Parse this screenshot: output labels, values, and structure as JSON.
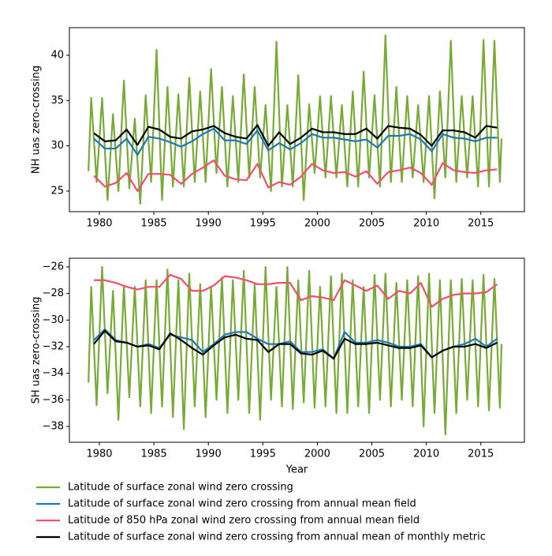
{
  "chart_data": [
    {
      "type": "line",
      "ylabel": "NH uas zero-crossing",
      "xlim": [
        1977.25,
        2019
      ],
      "xticks": [
        1980,
        1985,
        1990,
        1995,
        2000,
        2005,
        2010,
        2015
      ],
      "ylim": [
        22.73,
        43.05
      ],
      "yticks": [
        25,
        30,
        35,
        40
      ],
      "series": [
        {
          "name": "Latitude of surface zonal wind zero crossing",
          "color": "#77ab36",
          "x": [
            1979,
            1979.25,
            1979.75,
            1980.25,
            1980.75,
            1981.25,
            1981.75,
            1982.25,
            1982.75,
            1983.25,
            1983.75,
            1984.25,
            1984.75,
            1985.25,
            1985.75,
            1986.25,
            1986.75,
            1987.25,
            1987.75,
            1988.25,
            1988.75,
            1989.25,
            1989.75,
            1990.25,
            1990.75,
            1991.25,
            1991.75,
            1992.25,
            1992.75,
            1993.25,
            1993.75,
            1994.25,
            1994.75,
            1995.25,
            1995.75,
            1996.25,
            1996.75,
            1997.25,
            1997.75,
            1998.25,
            1998.75,
            1999.25,
            1999.75,
            2000.25,
            2000.75,
            2001.25,
            2001.75,
            2002.25,
            2002.75,
            2003.25,
            2003.75,
            2004.25,
            2004.75,
            2005.25,
            2005.75,
            2006.25,
            2006.75,
            2007.25,
            2007.75,
            2008.25,
            2008.75,
            2009.25,
            2009.75,
            2010.25,
            2010.75,
            2011.25,
            2011.75,
            2012.25,
            2012.75,
            2013.25,
            2013.75,
            2014.25,
            2014.75,
            2015.25,
            2015.75,
            2016.25,
            2016.75,
            2016.9
          ],
          "values": [
            27.2,
            35.3,
            26.0,
            35.3,
            24.0,
            33.5,
            25.0,
            37.2,
            25.3,
            33.0,
            23.6,
            35.6,
            26.0,
            40.6,
            24.0,
            36.5,
            25.5,
            35.7,
            25.5,
            37.5,
            26.0,
            36.0,
            26.0,
            38.5,
            27.0,
            36.5,
            25.5,
            35.5,
            26.0,
            37.9,
            26.5,
            36.5,
            26.5,
            34.5,
            25.0,
            41.5,
            25.5,
            34.5,
            25.5,
            37.8,
            24.0,
            34.6,
            27.0,
            35.5,
            26.5,
            35.5,
            26.5,
            34.5,
            25.5,
            36.0,
            25.5,
            38.2,
            26.5,
            35.6,
            25.5,
            42.2,
            26.0,
            36.5,
            26.0,
            35.5,
            26.5,
            34.5,
            26.0,
            35.5,
            24.2,
            36.0,
            26.5,
            41.6,
            26.0,
            35.5,
            26.5,
            35.5,
            25.5,
            41.7,
            25.5,
            41.6,
            26.0,
            30.8
          ]
        },
        {
          "name": "Latitude of surface zonal wind zero crossing from annual mean field",
          "color": "#1f77b4",
          "x": [
            1979.5,
            1980.5,
            1981.5,
            1982.5,
            1983.5,
            1984.5,
            1985.5,
            1986.5,
            1987.5,
            1988.5,
            1989.5,
            1990.5,
            1991.5,
            1992.5,
            1993.5,
            1994.5,
            1995.5,
            1996.5,
            1997.5,
            1998.5,
            1999.5,
            2000.5,
            2001.5,
            2002.5,
            2003.5,
            2004.5,
            2005.5,
            2006.5,
            2007.5,
            2008.5,
            2009.5,
            2010.5,
            2011.5,
            2012.5,
            2013.5,
            2014.5,
            2015.5,
            2016.5
          ],
          "values": [
            30.8,
            29.7,
            29.7,
            30.8,
            29.0,
            31.0,
            30.8,
            30.4,
            29.9,
            30.5,
            31.3,
            31.9,
            30.6,
            30.6,
            30.2,
            31.7,
            29.5,
            30.3,
            29.6,
            30.3,
            31.3,
            30.9,
            30.9,
            30.7,
            30.5,
            30.7,
            29.8,
            31.1,
            31.1,
            31.3,
            30.7,
            29.4,
            31.3,
            30.9,
            30.8,
            30.5,
            30.9,
            30.9
          ]
        },
        {
          "name": "Latitude of 850 hPa zonal wind zero crossing from annual mean field",
          "color": "#f0506a",
          "x": [
            1979.5,
            1980.5,
            1981.5,
            1982.5,
            1983.5,
            1984.5,
            1985.5,
            1986.5,
            1987.5,
            1988.5,
            1989.5,
            1990.5,
            1991.5,
            1992.5,
            1993.5,
            1994.5,
            1995.5,
            1996.5,
            1997.5,
            1998.5,
            1999.5,
            2000.5,
            2001.5,
            2002.5,
            2003.5,
            2004.5,
            2005.5,
            2006.5,
            2007.5,
            2008.5,
            2009.5,
            2010.5,
            2011.5,
            2012.5,
            2013.5,
            2014.5,
            2015.5,
            2016.5
          ],
          "values": [
            26.7,
            25.5,
            25.9,
            27.0,
            25.0,
            26.9,
            26.9,
            26.8,
            25.8,
            26.9,
            27.6,
            28.4,
            26.7,
            26.3,
            26.2,
            28.0,
            25.4,
            26.0,
            25.7,
            26.6,
            28.0,
            27.3,
            27.0,
            27.1,
            26.6,
            27.2,
            25.8,
            27.1,
            27.3,
            27.6,
            27.0,
            25.7,
            28.1,
            27.3,
            27.1,
            27.0,
            27.3,
            27.4
          ]
        },
        {
          "name": "Latitude of surface zonal wind zero crossing from annual mean of monthly metric",
          "color": "#000000",
          "x": [
            1979.5,
            1980.5,
            1981.5,
            1982.5,
            1983.5,
            1984.5,
            1985.5,
            1986.5,
            1987.5,
            1988.5,
            1989.5,
            1990.5,
            1991.5,
            1992.5,
            1993.5,
            1994.5,
            1995.5,
            1996.5,
            1997.5,
            1998.5,
            1999.5,
            2000.5,
            2001.5,
            2002.5,
            2003.5,
            2004.5,
            2005.5,
            2006.5,
            2007.5,
            2008.5,
            2009.5,
            2010.5,
            2011.5,
            2012.5,
            2013.5,
            2014.5,
            2015.5,
            2016.5
          ],
          "values": [
            31.4,
            30.5,
            30.6,
            31.8,
            30.1,
            32.1,
            31.8,
            31.0,
            30.8,
            31.6,
            31.8,
            32.2,
            31.4,
            31.0,
            30.8,
            32.3,
            30.0,
            31.5,
            30.2,
            30.9,
            31.9,
            31.5,
            31.5,
            31.3,
            31.3,
            31.9,
            30.8,
            32.2,
            32.0,
            31.9,
            31.2,
            30.0,
            31.7,
            31.7,
            31.5,
            30.9,
            32.2,
            32.0
          ]
        }
      ]
    },
    {
      "type": "line",
      "ylabel": "SH uas zero-crossing",
      "xlabel": "Year",
      "xlim": [
        1977.25,
        2019
      ],
      "xticks": [
        1980,
        1985,
        1990,
        1995,
        2000,
        2005,
        2010,
        2015
      ],
      "ylim": [
        -39.19,
        -25.35
      ],
      "yticks": [
        {
          "value": -38,
          "label": "−38"
        },
        {
          "value": -36,
          "label": "−36"
        },
        {
          "value": -34,
          "label": "−34"
        },
        {
          "value": -32,
          "label": "−32"
        },
        {
          "value": -30,
          "label": "−30"
        },
        {
          "value": -28,
          "label": "−28"
        },
        {
          "value": -26,
          "label": "−26"
        }
      ],
      "series": [
        {
          "color": "#77ab36",
          "x": [
            1979,
            1979.25,
            1979.75,
            1980.25,
            1980.75,
            1981.25,
            1981.75,
            1982.25,
            1982.75,
            1983.25,
            1983.75,
            1984.25,
            1984.75,
            1985.25,
            1985.75,
            1986.25,
            1986.75,
            1987.25,
            1987.75,
            1988.25,
            1988.75,
            1989.25,
            1989.75,
            1990.25,
            1990.75,
            1991.25,
            1991.75,
            1992.25,
            1992.75,
            1993.25,
            1993.75,
            1994.25,
            1994.75,
            1995.25,
            1995.75,
            1996.25,
            1996.75,
            1997.25,
            1997.75,
            1998.25,
            1998.75,
            1999.25,
            1999.75,
            2000.25,
            2000.75,
            2001.25,
            2001.75,
            2002.25,
            2002.75,
            2003.25,
            2003.75,
            2004.25,
            2004.75,
            2005.25,
            2005.75,
            2006.25,
            2006.75,
            2007.25,
            2007.75,
            2008.25,
            2008.75,
            2009.25,
            2009.75,
            2010.25,
            2010.75,
            2011.25,
            2011.75,
            2012.25,
            2012.75,
            2013.25,
            2013.75,
            2014.25,
            2014.75,
            2015.25,
            2015.75,
            2016.25,
            2016.75,
            2016.9
          ],
          "values": [
            -34.7,
            -27.5,
            -36.4,
            -26.0,
            -35.5,
            -27.8,
            -37.5,
            -27.4,
            -35.8,
            -27.5,
            -36.5,
            -27.0,
            -37.0,
            -27.0,
            -36.5,
            -26.2,
            -37.3,
            -27.0,
            -38.2,
            -26.5,
            -36.5,
            -27.3,
            -37.3,
            -27.5,
            -36.0,
            -26.8,
            -37.0,
            -27.0,
            -36.0,
            -26.3,
            -37.0,
            -27.3,
            -37.5,
            -26.0,
            -36.0,
            -27.5,
            -36.5,
            -26.0,
            -36.7,
            -27.0,
            -36.2,
            -26.3,
            -36.6,
            -27.5,
            -36.5,
            -26.7,
            -37.0,
            -26.5,
            -37.0,
            -27.0,
            -36.5,
            -27.5,
            -37.0,
            -26.6,
            -36.0,
            -26.5,
            -36.5,
            -27.2,
            -36.0,
            -27.0,
            -36.5,
            -26.7,
            -38.0,
            -26.5,
            -37.0,
            -27.0,
            -38.6,
            -27.0,
            -37.0,
            -26.9,
            -36.0,
            -27.0,
            -36.5,
            -26.6,
            -36.8,
            -26.9,
            -36.6,
            -31.8
          ]
        },
        {
          "color": "#1f77b4",
          "x": [
            1979.5,
            1980.5,
            1981.5,
            1982.5,
            1983.5,
            1984.5,
            1985.5,
            1986.5,
            1987.5,
            1988.5,
            1989.5,
            1990.5,
            1991.5,
            1992.5,
            1993.5,
            1994.5,
            1995.5,
            1996.5,
            1997.5,
            1998.5,
            1999.5,
            2000.5,
            2001.5,
            2002.5,
            2003.5,
            2004.5,
            2005.5,
            2006.5,
            2007.5,
            2008.5,
            2009.5,
            2010.5,
            2011.5,
            2012.5,
            2013.5,
            2014.5,
            2015.5,
            2016.5
          ],
          "values": [
            -31.5,
            -30.7,
            -31.5,
            -31.7,
            -32.0,
            -31.8,
            -32.1,
            -31.1,
            -31.3,
            -31.5,
            -32.4,
            -31.8,
            -31.1,
            -30.9,
            -30.9,
            -31.4,
            -31.8,
            -31.8,
            -31.6,
            -32.4,
            -32.4,
            -32.2,
            -32.9,
            -30.9,
            -31.7,
            -31.7,
            -31.5,
            -31.7,
            -32.0,
            -32.0,
            -31.8,
            -32.8,
            -32.3,
            -32.0,
            -31.8,
            -31.4,
            -32.0,
            -31.4
          ]
        },
        {
          "color": "#f0506a",
          "x": [
            1979.5,
            1980.5,
            1981.5,
            1982.5,
            1983.5,
            1984.5,
            1985.5,
            1986.5,
            1987.5,
            1988.5,
            1989.5,
            1990.5,
            1991.5,
            1992.5,
            1993.5,
            1994.5,
            1995.5,
            1996.5,
            1997.5,
            1998.5,
            1999.5,
            2000.5,
            2001.5,
            2002.5,
            2003.5,
            2004.5,
            2005.5,
            2006.5,
            2007.5,
            2008.5,
            2009.5,
            2010.5,
            2011.5,
            2012.5,
            2013.5,
            2014.5,
            2015.5,
            2016.5
          ],
          "values": [
            -27.0,
            -27.0,
            -27.2,
            -27.5,
            -27.7,
            -27.5,
            -27.5,
            -26.6,
            -26.9,
            -27.8,
            -27.8,
            -27.4,
            -26.7,
            -26.8,
            -27.0,
            -27.3,
            -27.3,
            -27.2,
            -27.2,
            -28.5,
            -28.2,
            -28.3,
            -28.5,
            -27.0,
            -27.4,
            -27.8,
            -27.4,
            -28.4,
            -27.8,
            -28.0,
            -27.2,
            -29.0,
            -28.4,
            -28.1,
            -28.0,
            -28.0,
            -27.9,
            -27.3
          ]
        },
        {
          "color": "#000000",
          "x": [
            1979.5,
            1980.5,
            1981.5,
            1982.5,
            1983.5,
            1984.5,
            1985.5,
            1986.5,
            1987.5,
            1988.5,
            1989.5,
            1990.5,
            1991.5,
            1992.5,
            1993.5,
            1994.5,
            1995.5,
            1996.5,
            1997.5,
            1998.5,
            1999.5,
            2000.5,
            2001.5,
            2002.5,
            2003.5,
            2004.5,
            2005.5,
            2006.5,
            2007.5,
            2008.5,
            2009.5,
            2010.5,
            2011.5,
            2012.5,
            2013.5,
            2014.5,
            2015.5,
            2016.5
          ],
          "values": [
            -31.8,
            -30.8,
            -31.6,
            -31.7,
            -32.0,
            -31.9,
            -32.2,
            -31.0,
            -31.5,
            -32.1,
            -32.6,
            -31.9,
            -31.3,
            -31.1,
            -31.4,
            -31.5,
            -32.4,
            -31.8,
            -31.8,
            -32.5,
            -32.6,
            -32.3,
            -32.9,
            -31.4,
            -31.8,
            -31.8,
            -31.7,
            -31.9,
            -32.1,
            -32.1,
            -31.9,
            -32.8,
            -32.3,
            -32.0,
            -32.0,
            -31.8,
            -32.1,
            -31.7
          ]
        }
      ]
    }
  ]
}
